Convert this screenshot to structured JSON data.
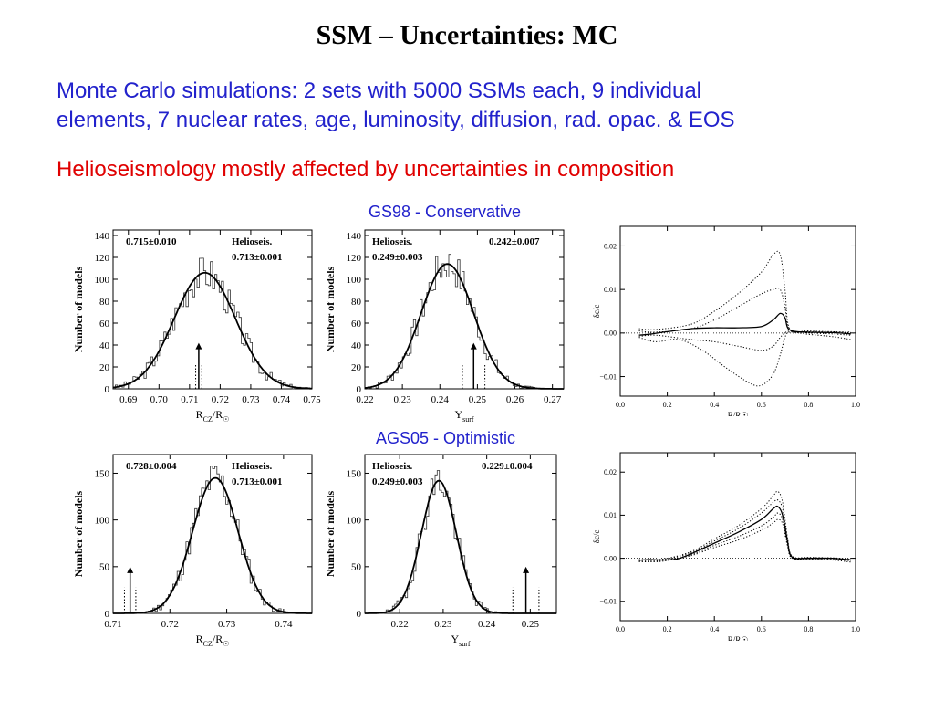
{
  "slide": {
    "title": "SSM – Uncertainties: MC",
    "bullet1_line1": "Monte Carlo simulations:  2 sets with 5000 SSMs each, 9 individual",
    "bullet1_line2": "elements, 7 nuclear rates, age, luminosity, diffusion, rad. opac. & EOS",
    "bullet2": "Helioseismology mostly affected by uncertainties in composition",
    "caption_top": "GS98 - Conservative",
    "caption_bottom": "AGS05 - Optimistic"
  },
  "chart_data": [
    {
      "type": "histogram",
      "panel": "gs98-rcz",
      "ylabel": "Number of models",
      "xlabel_main": "R",
      "xlabel_sub": "CZ",
      "xlabel_rest": "/R",
      "xlabel_sun": "☉",
      "xlim": [
        0.685,
        0.75
      ],
      "ylim": [
        0,
        145
      ],
      "xticks": [
        0.69,
        0.7,
        0.71,
        0.72,
        0.73,
        0.74,
        0.75
      ],
      "xtick_labels": [
        "0.69",
        "0.70",
        "0.71",
        "0.72",
        "0.73",
        "0.74",
        "0.75"
      ],
      "yticks": [
        0,
        20,
        40,
        60,
        80,
        100,
        120,
        140
      ],
      "ytick_labels": [
        "0",
        "20",
        "40",
        "60",
        "80",
        "100",
        "120",
        "140"
      ],
      "annotation_model": "0.715±0.010",
      "annotation_helio_label": "Helioseis.",
      "annotation_helio_value": "0.713±0.001",
      "gauss": {
        "mean": 0.715,
        "sigma": 0.01,
        "peak": 106
      },
      "noise_seed": 3,
      "helio": {
        "value": 0.713,
        "error": 0.001,
        "arrow_height": 42
      }
    },
    {
      "type": "histogram",
      "panel": "gs98-ysurf",
      "ylabel": "Number of models",
      "xlabel_main": "Y",
      "xlabel_sub": "surf",
      "xlabel_rest": "",
      "xlabel_sun": "",
      "xlim": [
        0.22,
        0.273
      ],
      "ylim": [
        0,
        145
      ],
      "xticks": [
        0.22,
        0.23,
        0.24,
        0.25,
        0.26,
        0.27
      ],
      "xtick_labels": [
        "0.22",
        "0.23",
        "0.24",
        "0.25",
        "0.26",
        "0.27"
      ],
      "yticks": [
        0,
        20,
        40,
        60,
        80,
        100,
        120,
        140
      ],
      "ytick_labels": [
        "0",
        "20",
        "40",
        "60",
        "80",
        "100",
        "120",
        "140"
      ],
      "annotation_model": "0.242±0.007",
      "annotation_helio_label": "Helioseis.",
      "annotation_helio_value": "0.249±0.003",
      "gauss": {
        "mean": 0.242,
        "sigma": 0.007,
        "peak": 114
      },
      "noise_seed": 7,
      "helio": {
        "value": 0.249,
        "error": 0.003,
        "arrow_height": 42
      }
    },
    {
      "type": "line",
      "panel": "gs98-dcc",
      "ylabel": "δc/c",
      "xlabel": "R/R☉",
      "xlim": [
        0.0,
        1.0
      ],
      "ylim": [
        -0.0145,
        0.0245
      ],
      "xticks": [
        0.0,
        0.2,
        0.4,
        0.6,
        0.8,
        1.0
      ],
      "xtick_labels": [
        "0.0",
        "0.2",
        "0.4",
        "0.6",
        "0.8",
        "1.0"
      ],
      "yticks": [
        -0.01,
        0.0,
        0.01,
        0.02
      ],
      "ytick_labels": [
        "−0.01",
        "0.00",
        "0.01",
        "0.02"
      ],
      "zero_line": true,
      "series": [
        {
          "style": "solid",
          "x": [
            0.08,
            0.12,
            0.2,
            0.3,
            0.4,
            0.5,
            0.6,
            0.65,
            0.68,
            0.7,
            0.72,
            0.8,
            0.9,
            0.98
          ],
          "y": [
            -0.0005,
            -0.0003,
            0.0003,
            0.001,
            0.0012,
            0.0012,
            0.0015,
            0.003,
            0.0045,
            0.0035,
            0.0007,
            0.0002,
            0.0001,
            -0.0002
          ]
        },
        {
          "style": "dotted",
          "x": [
            0.08,
            0.15,
            0.3,
            0.4,
            0.5,
            0.6,
            0.65,
            0.68,
            0.7,
            0.72,
            0.8,
            0.9,
            0.98
          ],
          "y": [
            0.001,
            0.0008,
            0.002,
            0.005,
            0.009,
            0.014,
            0.018,
            0.018,
            0.01,
            0.001,
            0.0005,
            0.0003,
            0.0002
          ]
        },
        {
          "style": "dotted",
          "x": [
            0.08,
            0.15,
            0.3,
            0.4,
            0.5,
            0.6,
            0.65,
            0.68,
            0.7,
            0.72,
            0.8,
            0.9,
            0.98
          ],
          "y": [
            0.0005,
            0.0002,
            0.001,
            0.003,
            0.006,
            0.009,
            0.01,
            0.01,
            0.006,
            0.0008,
            0.0003,
            0.0002,
            0.0001
          ]
        },
        {
          "style": "dotted",
          "x": [
            0.08,
            0.15,
            0.3,
            0.4,
            0.5,
            0.6,
            0.65,
            0.68,
            0.7,
            0.72,
            0.8,
            0.9,
            0.98
          ],
          "y": [
            -0.0008,
            -0.0005,
            -0.0015,
            -0.002,
            -0.003,
            -0.004,
            -0.003,
            -0.001,
            0.0,
            0.0004,
            0.0,
            -0.0002,
            -0.0005
          ]
        },
        {
          "style": "dotted",
          "x": [
            0.08,
            0.15,
            0.25,
            0.35,
            0.45,
            0.55,
            0.6,
            0.65,
            0.68,
            0.7,
            0.72,
            0.8,
            0.9,
            0.98
          ],
          "y": [
            -0.001,
            -0.002,
            -0.0015,
            -0.004,
            -0.008,
            -0.0115,
            -0.012,
            -0.0095,
            -0.005,
            -0.001,
            0.0002,
            -0.0003,
            -0.0008,
            -0.0015
          ]
        }
      ]
    },
    {
      "type": "histogram",
      "panel": "ags05-rcz",
      "ylabel": "Number of models",
      "xlabel_main": "R",
      "xlabel_sub": "CZ",
      "xlabel_rest": "/R",
      "xlabel_sun": "☉",
      "xlim": [
        0.71,
        0.745
      ],
      "ylim": [
        0,
        170
      ],
      "xticks": [
        0.71,
        0.72,
        0.73,
        0.74
      ],
      "xtick_labels": [
        "0.71",
        "0.72",
        "0.73",
        "0.74"
      ],
      "yticks": [
        0,
        50,
        100,
        150
      ],
      "ytick_labels": [
        "0",
        "50",
        "100",
        "150"
      ],
      "annotation_model": "0.728±0.004",
      "annotation_helio_label": "Helioseis.",
      "annotation_helio_value": "0.713±0.001",
      "gauss": {
        "mean": 0.728,
        "sigma": 0.004,
        "peak": 145
      },
      "noise_seed": 11,
      "helio": {
        "value": 0.713,
        "error": 0.001,
        "arrow_height": 50
      }
    },
    {
      "type": "histogram",
      "panel": "ags05-ysurf",
      "ylabel": "Number of models",
      "xlabel_main": "Y",
      "xlabel_sub": "surf",
      "xlabel_rest": "",
      "xlabel_sun": "",
      "xlim": [
        0.212,
        0.256
      ],
      "ylim": [
        0,
        170
      ],
      "xticks": [
        0.22,
        0.23,
        0.24,
        0.25
      ],
      "xtick_labels": [
        "0.22",
        "0.23",
        "0.24",
        "0.25"
      ],
      "yticks": [
        0,
        50,
        100,
        150
      ],
      "ytick_labels": [
        "0",
        "50",
        "100",
        "150"
      ],
      "annotation_model": "0.229±0.004",
      "annotation_helio_label": "Helioseis.",
      "annotation_helio_value": "0.249±0.003",
      "gauss": {
        "mean": 0.229,
        "sigma": 0.004,
        "peak": 142
      },
      "noise_seed": 19,
      "helio": {
        "value": 0.249,
        "error": 0.003,
        "arrow_height": 50
      }
    },
    {
      "type": "line",
      "panel": "ags05-dcc",
      "ylabel": "δc/c",
      "xlabel": "R/R☉",
      "xlim": [
        0.0,
        1.0
      ],
      "ylim": [
        -0.0145,
        0.0245
      ],
      "xticks": [
        0.0,
        0.2,
        0.4,
        0.6,
        0.8,
        1.0
      ],
      "xtick_labels": [
        "0.0",
        "0.2",
        "0.4",
        "0.6",
        "0.8",
        "1.0"
      ],
      "yticks": [
        -0.01,
        0.0,
        0.01,
        0.02
      ],
      "ytick_labels": [
        "−0.01",
        "0.00",
        "0.01",
        "0.02"
      ],
      "zero_line": true,
      "series": [
        {
          "style": "solid",
          "x": [
            0.08,
            0.12,
            0.18,
            0.24,
            0.3,
            0.4,
            0.5,
            0.6,
            0.65,
            0.67,
            0.69,
            0.71,
            0.73,
            0.8,
            0.9,
            0.98
          ],
          "y": [
            -0.0005,
            -0.0003,
            -0.0004,
            -0.0002,
            0.001,
            0.0035,
            0.006,
            0.009,
            0.0115,
            0.012,
            0.01,
            0.004,
            0.0003,
            0.0,
            0.0,
            -0.0004
          ]
        },
        {
          "style": "dotted",
          "x": [
            0.08,
            0.18,
            0.3,
            0.4,
            0.5,
            0.6,
            0.65,
            0.67,
            0.69,
            0.71,
            0.73,
            0.8,
            0.9,
            0.98
          ],
          "y": [
            -0.0003,
            -0.0002,
            0.0015,
            0.0045,
            0.0075,
            0.0115,
            0.0145,
            0.0155,
            0.013,
            0.005,
            0.0005,
            0.0002,
            0.0001,
            -0.0002
          ]
        },
        {
          "style": "dotted",
          "x": [
            0.08,
            0.18,
            0.3,
            0.4,
            0.5,
            0.6,
            0.65,
            0.67,
            0.69,
            0.71,
            0.73,
            0.8,
            0.9,
            0.98
          ],
          "y": [
            -0.0004,
            -0.0003,
            0.0012,
            0.004,
            0.0068,
            0.0105,
            0.013,
            0.0135,
            0.0115,
            0.0045,
            0.0004,
            0.0001,
            0.0,
            -0.0003
          ]
        },
        {
          "style": "dotted",
          "x": [
            0.08,
            0.18,
            0.3,
            0.4,
            0.5,
            0.6,
            0.65,
            0.67,
            0.69,
            0.71,
            0.73,
            0.8,
            0.9,
            0.98
          ],
          "y": [
            -0.0007,
            -0.0005,
            0.0008,
            0.003,
            0.005,
            0.0075,
            0.0095,
            0.0105,
            0.009,
            0.0035,
            0.0001,
            -0.0001,
            -0.0002,
            -0.0006
          ]
        },
        {
          "style": "dotted",
          "x": [
            0.08,
            0.18,
            0.3,
            0.4,
            0.5,
            0.6,
            0.65,
            0.67,
            0.69,
            0.71,
            0.73,
            0.8,
            0.9,
            0.98
          ],
          "y": [
            -0.0008,
            -0.0007,
            0.0006,
            0.0025,
            0.0042,
            0.0065,
            0.0082,
            0.009,
            0.008,
            0.003,
            0.0,
            -0.0002,
            -0.0004,
            -0.0009
          ]
        }
      ]
    }
  ]
}
